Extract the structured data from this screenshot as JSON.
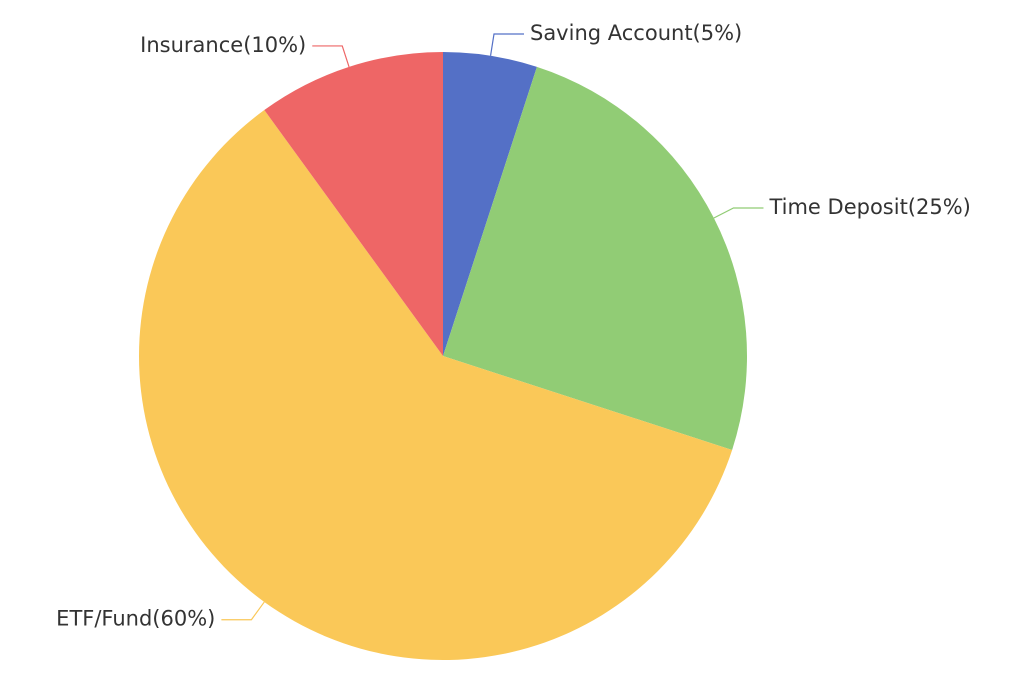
{
  "chart_data": {
    "type": "pie",
    "start_angle_deg": 0,
    "direction": "clockwise",
    "slices": [
      {
        "label": "Saving Account(5%)",
        "name": "Saving Account",
        "value": 5,
        "color": "#5470c6"
      },
      {
        "label": "Time Deposit(25%)",
        "name": "Time Deposit",
        "value": 25,
        "color": "#91cc75"
      },
      {
        "label": "ETF/Fund(60%)",
        "name": "ETF/Fund",
        "value": 60,
        "color": "#fac858"
      },
      {
        "label": "Insurance(10%)",
        "name": "Insurance",
        "value": 10,
        "color": "#ee6666"
      }
    ],
    "legend": "none"
  }
}
